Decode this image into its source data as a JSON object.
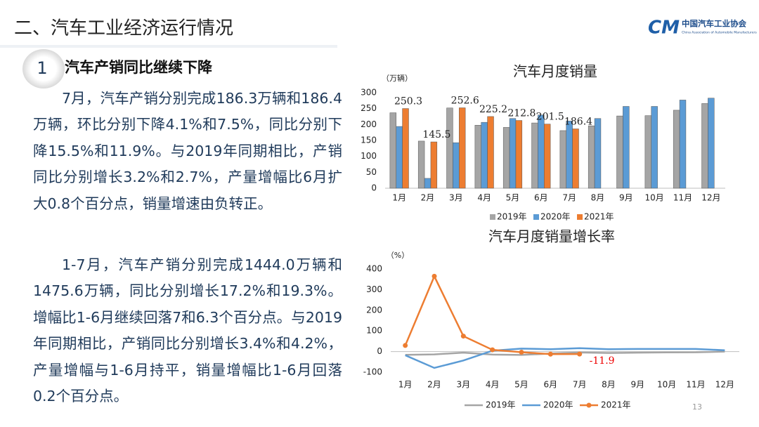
{
  "header": {
    "title": "二、汽车工业经济运行情况",
    "logo_name": "中国汽车工业协会",
    "logo_en": "China Association of Automobile Manufacturers",
    "logo_mark": "CM"
  },
  "section": {
    "number": "1",
    "title": "汽车产销同比继续下降"
  },
  "paragraphs": [
    "7月，汽车产销分别完成186.3万辆和186.4万辆，环比分别下降4.1%和7.5%，同比分别下降15.5%和11.9%。与2019年同期相比，产销同比分别增长3.2%和2.7%，产量增幅比6月扩大0.8个百分点，销量增速由负转正。",
    "1-7月，汽车产销分别完成1444.0万辆和1475.6万辆，同比分别增长17.2%和19.3%。增幅比1-6月继续回落7和6.3个百分点。与2019年同期相比，产销同比分别增长3.4%和4.2%，产量增幅与1-6月持平，销量增幅比1-6月回落0.2个百分点。"
  ],
  "page_number": "13",
  "chart_data": [
    {
      "type": "bar",
      "title": "汽车月度销量",
      "y_label": "（万辆）",
      "categories": [
        "1月",
        "2月",
        "3月",
        "4月",
        "5月",
        "6月",
        "7月",
        "8月",
        "9月",
        "10月",
        "11月",
        "12月"
      ],
      "series": [
        {
          "name": "2019年",
          "color": "#a5a5a5",
          "values": [
            237,
            148,
            252,
            198,
            191,
            205,
            181,
            196,
            227,
            228,
            245,
            266
          ]
        },
        {
          "name": "2020年",
          "color": "#5b9bd5",
          "values": [
            194,
            31,
            143,
            207,
            219,
            230,
            211,
            219,
            257,
            257,
            277,
            283
          ]
        },
        {
          "name": "2021年",
          "color": "#ed7d31",
          "values": [
            250.3,
            145.5,
            252.6,
            225.2,
            212.8,
            201.5,
            186.4,
            null,
            null,
            null,
            null,
            null
          ]
        }
      ],
      "ylim": [
        0,
        300
      ],
      "yticks": [
        0,
        50,
        100,
        150,
        200,
        250,
        300
      ],
      "legend": "bottom"
    },
    {
      "type": "line",
      "title": "汽车月度销量增长率",
      "y_label": "（%）",
      "categories": [
        "1月",
        "2月",
        "3月",
        "4月",
        "5月",
        "6月",
        "7月",
        "8月",
        "9月",
        "10月",
        "11月",
        "12月"
      ],
      "series": [
        {
          "name": "2019年",
          "color": "#a5a5a5",
          "values": [
            -15.8,
            -13.8,
            -5.2,
            -14.6,
            -16.4,
            -9.6,
            -4.3,
            -6.9,
            -5.2,
            -4,
            -3.6,
            0.1
          ]
        },
        {
          "name": "2020年",
          "color": "#5b9bd5",
          "values": [
            -18,
            -79.1,
            -43.3,
            4.4,
            14.5,
            11.6,
            16.4,
            11.6,
            12.8,
            12.5,
            12.6,
            6.4
          ]
        },
        {
          "name": "2021年",
          "color": "#ed7d31",
          "markers": true,
          "values": [
            29.5,
            364.6,
            74.9,
            8.6,
            -3.1,
            -12.4,
            -11.9,
            null,
            null,
            null,
            null,
            null
          ]
        }
      ],
      "ylim": [
        -100,
        400
      ],
      "yticks": [
        -100,
        0,
        100,
        200,
        300,
        400
      ],
      "legend": "bottom"
    }
  ]
}
